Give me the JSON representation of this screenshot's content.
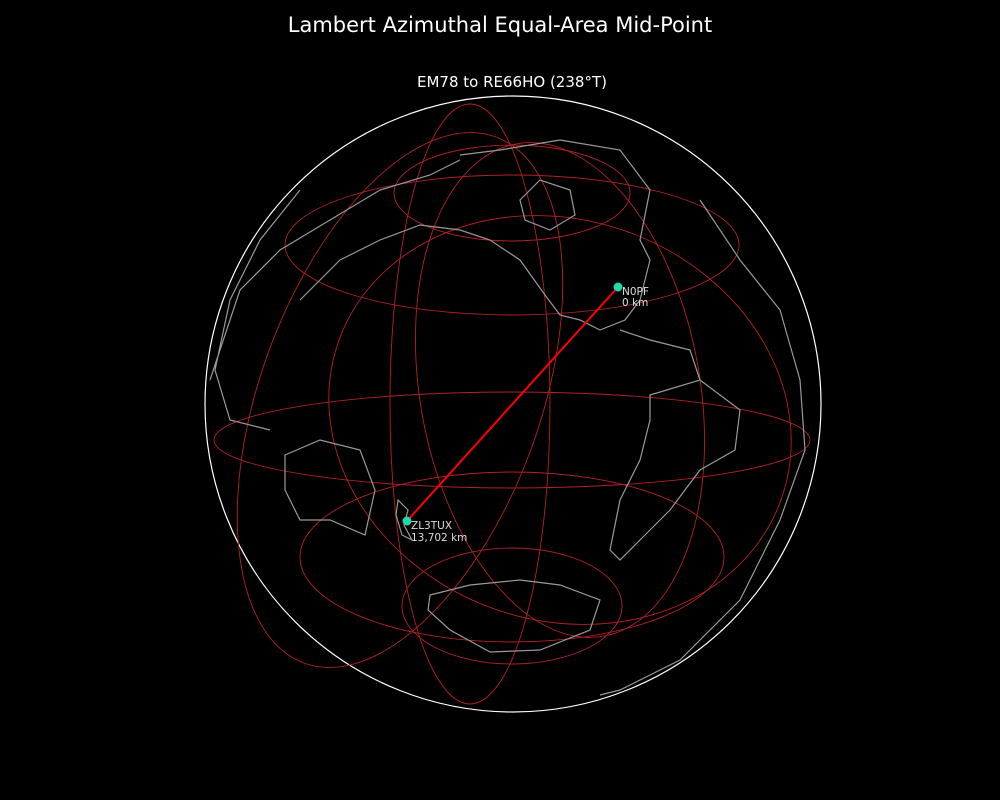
{
  "title": "Lambert Azimuthal Equal-Area Mid-Point",
  "subtitle": "EM78 to RE66HO (238°T)",
  "colors": {
    "background": "#000000",
    "globe_outline": "#ffffff",
    "graticule": "#b22222",
    "coastline": "#999999",
    "path": "#ff0000",
    "station": "#20d8a8"
  },
  "stations": [
    {
      "call": "N0PF",
      "distance": "0 km"
    },
    {
      "call": "ZL3TUX",
      "distance": "13,702 km"
    }
  ]
}
